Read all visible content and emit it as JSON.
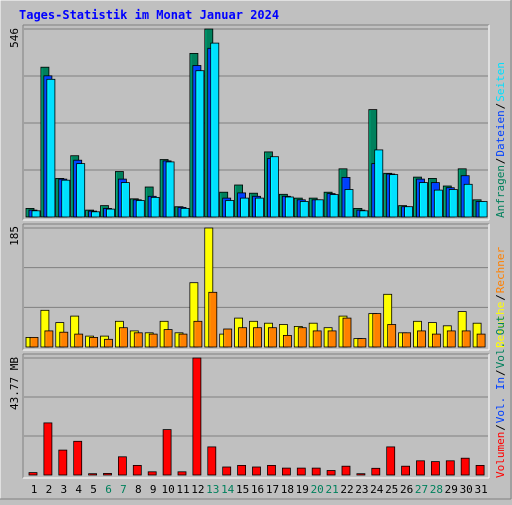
{
  "title": "Tages-Statistik im Monat Januar 2024",
  "colors": {
    "background": "#c0c0c0",
    "title": "#0000ff",
    "anfragen": "#00805c",
    "dateien": "#0040ff",
    "seiten": "#00e0ff",
    "besuche": "#ffff00",
    "rechner": "#ff8000",
    "volumen": "#ff0000",
    "weekend_label": "#00805c",
    "day_label": "#000000",
    "grid": "#808080"
  },
  "chart_data": [
    {
      "type": "bar",
      "title": "",
      "ymax_label": "546",
      "ylim": [
        0,
        546
      ],
      "grid": true,
      "categories": [
        "1",
        "2",
        "3",
        "4",
        "5",
        "6",
        "7",
        "8",
        "9",
        "10",
        "11",
        "12",
        "13",
        "14",
        "15",
        "16",
        "17",
        "18",
        "19",
        "20",
        "21",
        "22",
        "23",
        "24",
        "25",
        "26",
        "27",
        "28",
        "29",
        "30",
        "31"
      ],
      "weekend_days": [
        6,
        7,
        13,
        14,
        20,
        21,
        27,
        28
      ],
      "side_labels": [
        {
          "text": "Anfragen",
          "color": "#00805c"
        },
        {
          "text": "Dateien",
          "color": "#0040ff"
        },
        {
          "text": "Seiten",
          "color": "#00e0ff"
        }
      ],
      "series": [
        {
          "name": "Anfragen",
          "color": "#00805c",
          "values": [
            25,
            435,
            112,
            178,
            20,
            33,
            132,
            53,
            87,
            167,
            30,
            475,
            546,
            72,
            93,
            69,
            189,
            66,
            55,
            55,
            72,
            140,
            25,
            312,
            127,
            33,
            116,
            112,
            90,
            140,
            50
          ]
        },
        {
          "name": "Dateien",
          "color": "#0040ff",
          "values": [
            20,
            410,
            110,
            165,
            17,
            25,
            110,
            50,
            60,
            163,
            28,
            440,
            490,
            55,
            70,
            60,
            170,
            60,
            50,
            50,
            68,
            115,
            20,
            155,
            125,
            30,
            110,
            100,
            85,
            120,
            45
          ]
        },
        {
          "name": "Seiten",
          "color": "#00e0ff",
          "values": [
            18,
            400,
            107,
            155,
            15,
            23,
            100,
            48,
            57,
            160,
            25,
            425,
            505,
            48,
            55,
            55,
            175,
            58,
            45,
            50,
            65,
            80,
            18,
            195,
            123,
            30,
            100,
            78,
            80,
            95,
            45
          ]
        }
      ]
    },
    {
      "type": "bar",
      "title": "",
      "ymax_label": "185",
      "ylim": [
        0,
        185
      ],
      "grid": true,
      "categories": [
        "1",
        "2",
        "3",
        "4",
        "5",
        "6",
        "7",
        "8",
        "9",
        "10",
        "11",
        "12",
        "13",
        "14",
        "15",
        "16",
        "17",
        "18",
        "19",
        "20",
        "21",
        "22",
        "23",
        "24",
        "25",
        "26",
        "27",
        "28",
        "29",
        "30",
        "31"
      ],
      "side_labels": [
        {
          "text": "Besuche",
          "color": "#ffff00"
        },
        {
          "text": "Rechner",
          "color": "#ff8000"
        }
      ],
      "series": [
        {
          "name": "Besuche",
          "color": "#ffff00",
          "values": [
            15,
            57,
            38,
            48,
            17,
            17,
            40,
            25,
            22,
            40,
            22,
            100,
            185,
            20,
            45,
            40,
            37,
            35,
            32,
            37,
            30,
            48,
            13,
            52,
            82,
            22,
            40,
            38,
            33,
            55,
            37
          ]
        },
        {
          "name": "Rechner",
          "color": "#ff8000",
          "values": [
            15,
            25,
            23,
            20,
            15,
            12,
            30,
            22,
            20,
            27,
            20,
            40,
            85,
            28,
            30,
            30,
            30,
            18,
            30,
            25,
            25,
            45,
            13,
            52,
            35,
            22,
            25,
            20,
            25,
            25,
            20
          ]
        }
      ]
    },
    {
      "type": "bar",
      "title": "",
      "ymax_label": "43.77 MB",
      "ylim": [
        0,
        43.77
      ],
      "grid": true,
      "categories": [
        "1",
        "2",
        "3",
        "4",
        "5",
        "6",
        "7",
        "8",
        "9",
        "10",
        "11",
        "12",
        "13",
        "14",
        "15",
        "16",
        "17",
        "18",
        "19",
        "20",
        "21",
        "22",
        "23",
        "24",
        "25",
        "26",
        "27",
        "28",
        "29",
        "30",
        "31"
      ],
      "side_labels": [
        {
          "text": "Volumen",
          "color": "#ff0000"
        },
        {
          "text": "Vol. In",
          "color": "#0040ff"
        },
        {
          "text": "Vol. Out",
          "color": "#00805c"
        }
      ],
      "series": [
        {
          "name": "Volumen",
          "color": "#ff0000",
          "values": [
            0.9,
            19.5,
            9.3,
            12.6,
            0.5,
            0.6,
            6.8,
            3.6,
            1.2,
            17.0,
            1.2,
            43.77,
            10.5,
            3.0,
            3.6,
            3.0,
            3.6,
            2.6,
            2.6,
            2.6,
            1.7,
            3.3,
            0.5,
            2.5,
            10.5,
            3.3,
            5.3,
            5.0,
            5.3,
            6.3,
            3.6
          ]
        }
      ]
    }
  ]
}
